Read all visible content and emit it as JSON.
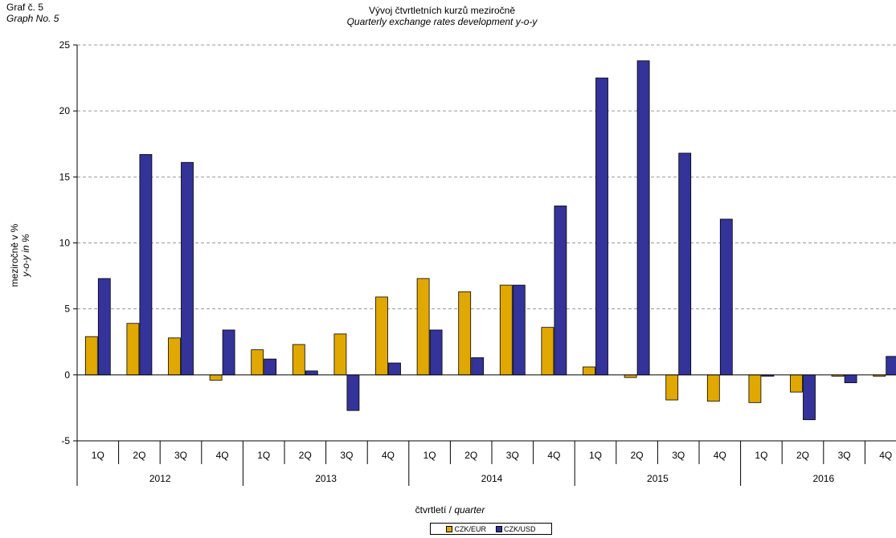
{
  "header": {
    "graph_cz": "Graf č. 5",
    "graph_en": "Graph No. 5",
    "title_cz": "Vývoj čtvrtletních kurzů meziročně",
    "title_en": "Quarterly exchange rates development y-o-y"
  },
  "colors": {
    "eur": "#E0A800",
    "usd": "#33339A",
    "grid": "#9a9a9a"
  },
  "chart_data": {
    "type": "bar",
    "title": "Vývoj čtvrtletních kurzů meziročně / Quarterly exchange rates development y-o-y",
    "ylabel_cz": "meziročně v %",
    "ylabel_en": "y-o-y in %",
    "xlabel_cz": "čtvrtletí",
    "xlabel_en": "quarter",
    "ylim": [
      -5,
      25
    ],
    "yticks": [
      -5,
      0,
      5,
      10,
      15,
      20,
      25
    ],
    "grid": true,
    "legend_position": "bottom",
    "categories": [
      "1Q",
      "2Q",
      "3Q",
      "4Q",
      "1Q",
      "2Q",
      "3Q",
      "4Q",
      "1Q",
      "2Q",
      "3Q",
      "4Q",
      "1Q",
      "2Q",
      "3Q",
      "4Q",
      "1Q",
      "2Q",
      "3Q",
      "4Q"
    ],
    "years": [
      "2012",
      "2013",
      "2014",
      "2015",
      "2016"
    ],
    "series": [
      {
        "name": "CZK/EUR",
        "values": [
          2.9,
          3.9,
          2.8,
          -0.4,
          1.9,
          2.3,
          3.1,
          5.9,
          7.3,
          6.3,
          6.8,
          3.6,
          0.6,
          -0.2,
          -1.9,
          -2.0,
          -2.1,
          -1.3,
          -0.1,
          -0.1
        ]
      },
      {
        "name": "CZK/USD",
        "values": [
          7.3,
          16.7,
          16.1,
          3.4,
          1.2,
          0.3,
          -2.7,
          0.9,
          3.4,
          1.3,
          6.8,
          12.8,
          22.5,
          23.8,
          16.8,
          11.8,
          -0.1,
          -3.4,
          -0.6,
          1.4
        ]
      }
    ]
  }
}
